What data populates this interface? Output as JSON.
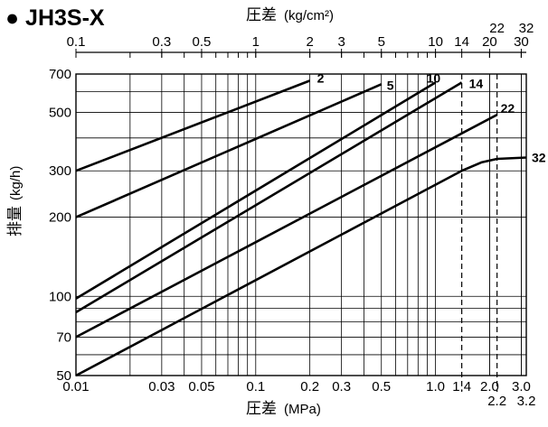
{
  "chart_data": {
    "type": "line",
    "title": "● JH3S-X",
    "xlabel_top_main": "圧差",
    "xlabel_top_unit": "(kg/cm²)",
    "xlabel_bottom_main": "圧差",
    "xlabel_bottom_unit": "(MPa)",
    "ylabel_main": "排量",
    "ylabel_unit": "(kg/h)",
    "x_scale": "log",
    "y_scale": "log",
    "xlim": [
      0.01,
      3.2
    ],
    "ylim": [
      50,
      700
    ],
    "grid": true,
    "x_bottom_ticks": [
      "0.01",
      "0.03",
      "0.05",
      "0.1",
      "0.2",
      "0.3",
      "0.5",
      "1.0",
      "1.4",
      "2.0",
      "3.0"
    ],
    "x_bottom_extra_ticks": [
      "2.2",
      "3.2"
    ],
    "x_top_ticks": [
      "0.1",
      "0.3",
      "0.5",
      "1",
      "2",
      "3",
      "5",
      "10",
      "14",
      "20",
      "30"
    ],
    "x_top_extra_ticks": [
      "22",
      "32"
    ],
    "y_ticks": [
      "50",
      "70",
      "100",
      "200",
      "300",
      "500",
      "700"
    ],
    "dashed_limits_mpa": [
      1.4,
      2.2
    ],
    "series": [
      {
        "name": "2",
        "points": [
          [
            0.01,
            300
          ],
          [
            0.2,
            660
          ]
        ]
      },
      {
        "name": "5",
        "points": [
          [
            0.01,
            200
          ],
          [
            0.5,
            640
          ]
        ]
      },
      {
        "name": "10",
        "points": [
          [
            0.01,
            98
          ],
          [
            1.0,
            650
          ]
        ]
      },
      {
        "name": "14",
        "points": [
          [
            0.01,
            87
          ],
          [
            1.4,
            650
          ]
        ]
      },
      {
        "name": "22",
        "points": [
          [
            0.01,
            70
          ],
          [
            2.2,
            490
          ]
        ]
      },
      {
        "name": "32",
        "points": [
          [
            0.01,
            50
          ],
          [
            1.4,
            300
          ],
          [
            1.8,
            323
          ],
          [
            2.2,
            333
          ],
          [
            3.2,
            337
          ]
        ]
      }
    ]
  }
}
